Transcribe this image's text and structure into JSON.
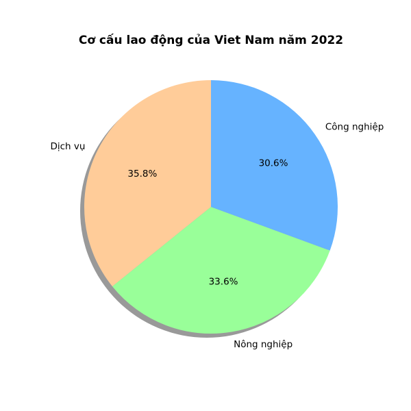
{
  "chart_data": {
    "type": "pie",
    "title": "Cơ cấu lao động của Viet Nam năm 2022",
    "labels": [
      "Dịch vụ",
      "Nông nghiệp",
      "Công nghiệp"
    ],
    "values": [
      35.8,
      33.6,
      30.6
    ],
    "value_labels": [
      "35.8%",
      "33.6%",
      "30.6%"
    ],
    "colors": [
      "#ffcc99",
      "#99ff99",
      "#66b3ff"
    ],
    "start_angle_deg": 90,
    "direction": "counterclockwise",
    "shadow": true,
    "legend": "none"
  }
}
